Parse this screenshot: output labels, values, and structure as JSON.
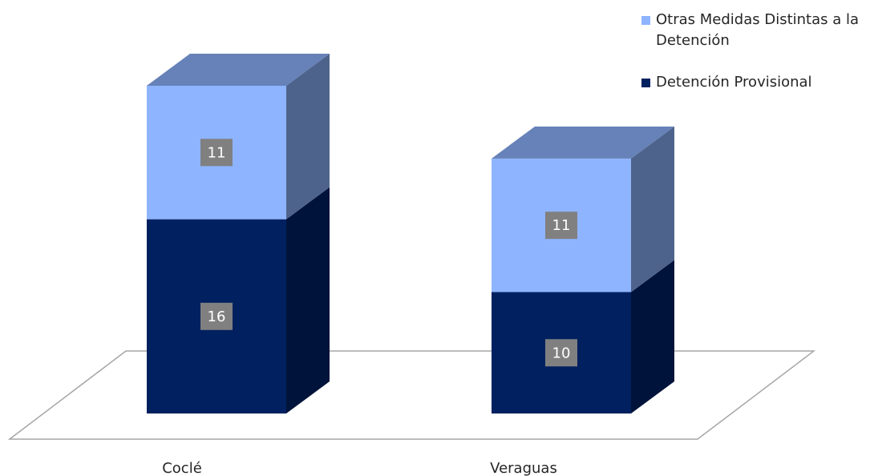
{
  "chart_data": {
    "type": "bar",
    "stacked": true,
    "three_d": true,
    "categories": [
      "Coclé",
      "Veraguas"
    ],
    "series": [
      {
        "name": "Detención Provisional",
        "values": [
          16,
          10
        ],
        "color": "#002060"
      },
      {
        "name": "Otras Medidas Distintas a la Detención",
        "values": [
          11,
          11
        ],
        "color": "#8EB4FF"
      }
    ],
    "legend_position": "top-right",
    "grid": false,
    "data_label_background": "#808080"
  },
  "legend": {
    "items": [
      {
        "label": "Otras Medidas Distintas a la Detención",
        "color": "#8EB4FF"
      },
      {
        "label": "Detención Provisional",
        "color": "#002060"
      }
    ]
  }
}
